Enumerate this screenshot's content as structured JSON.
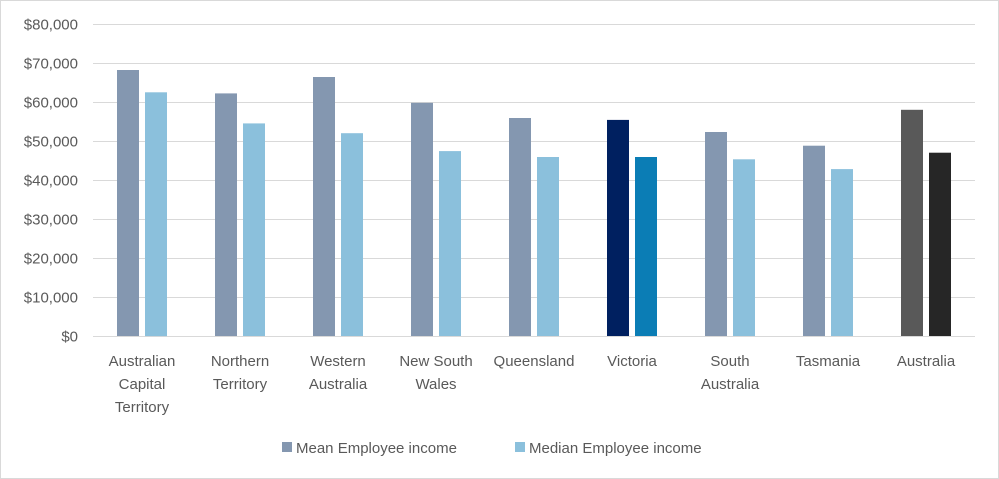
{
  "chart_data": {
    "type": "bar",
    "title": "",
    "xlabel": "",
    "ylabel": "",
    "ylim": [
      0,
      80000
    ],
    "yticks": [
      0,
      10000,
      20000,
      30000,
      40000,
      50000,
      60000,
      70000,
      80000
    ],
    "ytick_labels": [
      "$0",
      "$10,000",
      "$20,000",
      "$30,000",
      "$40,000",
      "$50,000",
      "$60,000",
      "$70,000",
      "$80,000"
    ],
    "grid": true,
    "legend_position": "bottom",
    "categories": [
      [
        "Australian",
        "Capital",
        "Territory"
      ],
      [
        "Northern",
        "Territory"
      ],
      [
        "Western",
        "Australia"
      ],
      [
        "New South",
        "Wales"
      ],
      [
        "Queensland"
      ],
      [
        "Victoria"
      ],
      [
        "South",
        "Australia"
      ],
      [
        "Tasmania"
      ],
      [
        "Australia"
      ]
    ],
    "series": [
      {
        "name": "Mean Employee income",
        "color": "#8497b0",
        "values": [
          68200,
          62200,
          66400,
          59800,
          55900,
          55400,
          52300,
          48800,
          58000
        ],
        "point_colors": [
          null,
          null,
          null,
          null,
          null,
          "#002060",
          null,
          null,
          "#595959"
        ]
      },
      {
        "name": "Median Employee income",
        "color": "#8bc0dc",
        "values": [
          62500,
          54500,
          52000,
          47400,
          45900,
          45900,
          45300,
          42800,
          47000
        ],
        "point_colors": [
          null,
          null,
          null,
          null,
          null,
          "#0b7db5",
          null,
          null,
          "#262626"
        ]
      }
    ]
  }
}
